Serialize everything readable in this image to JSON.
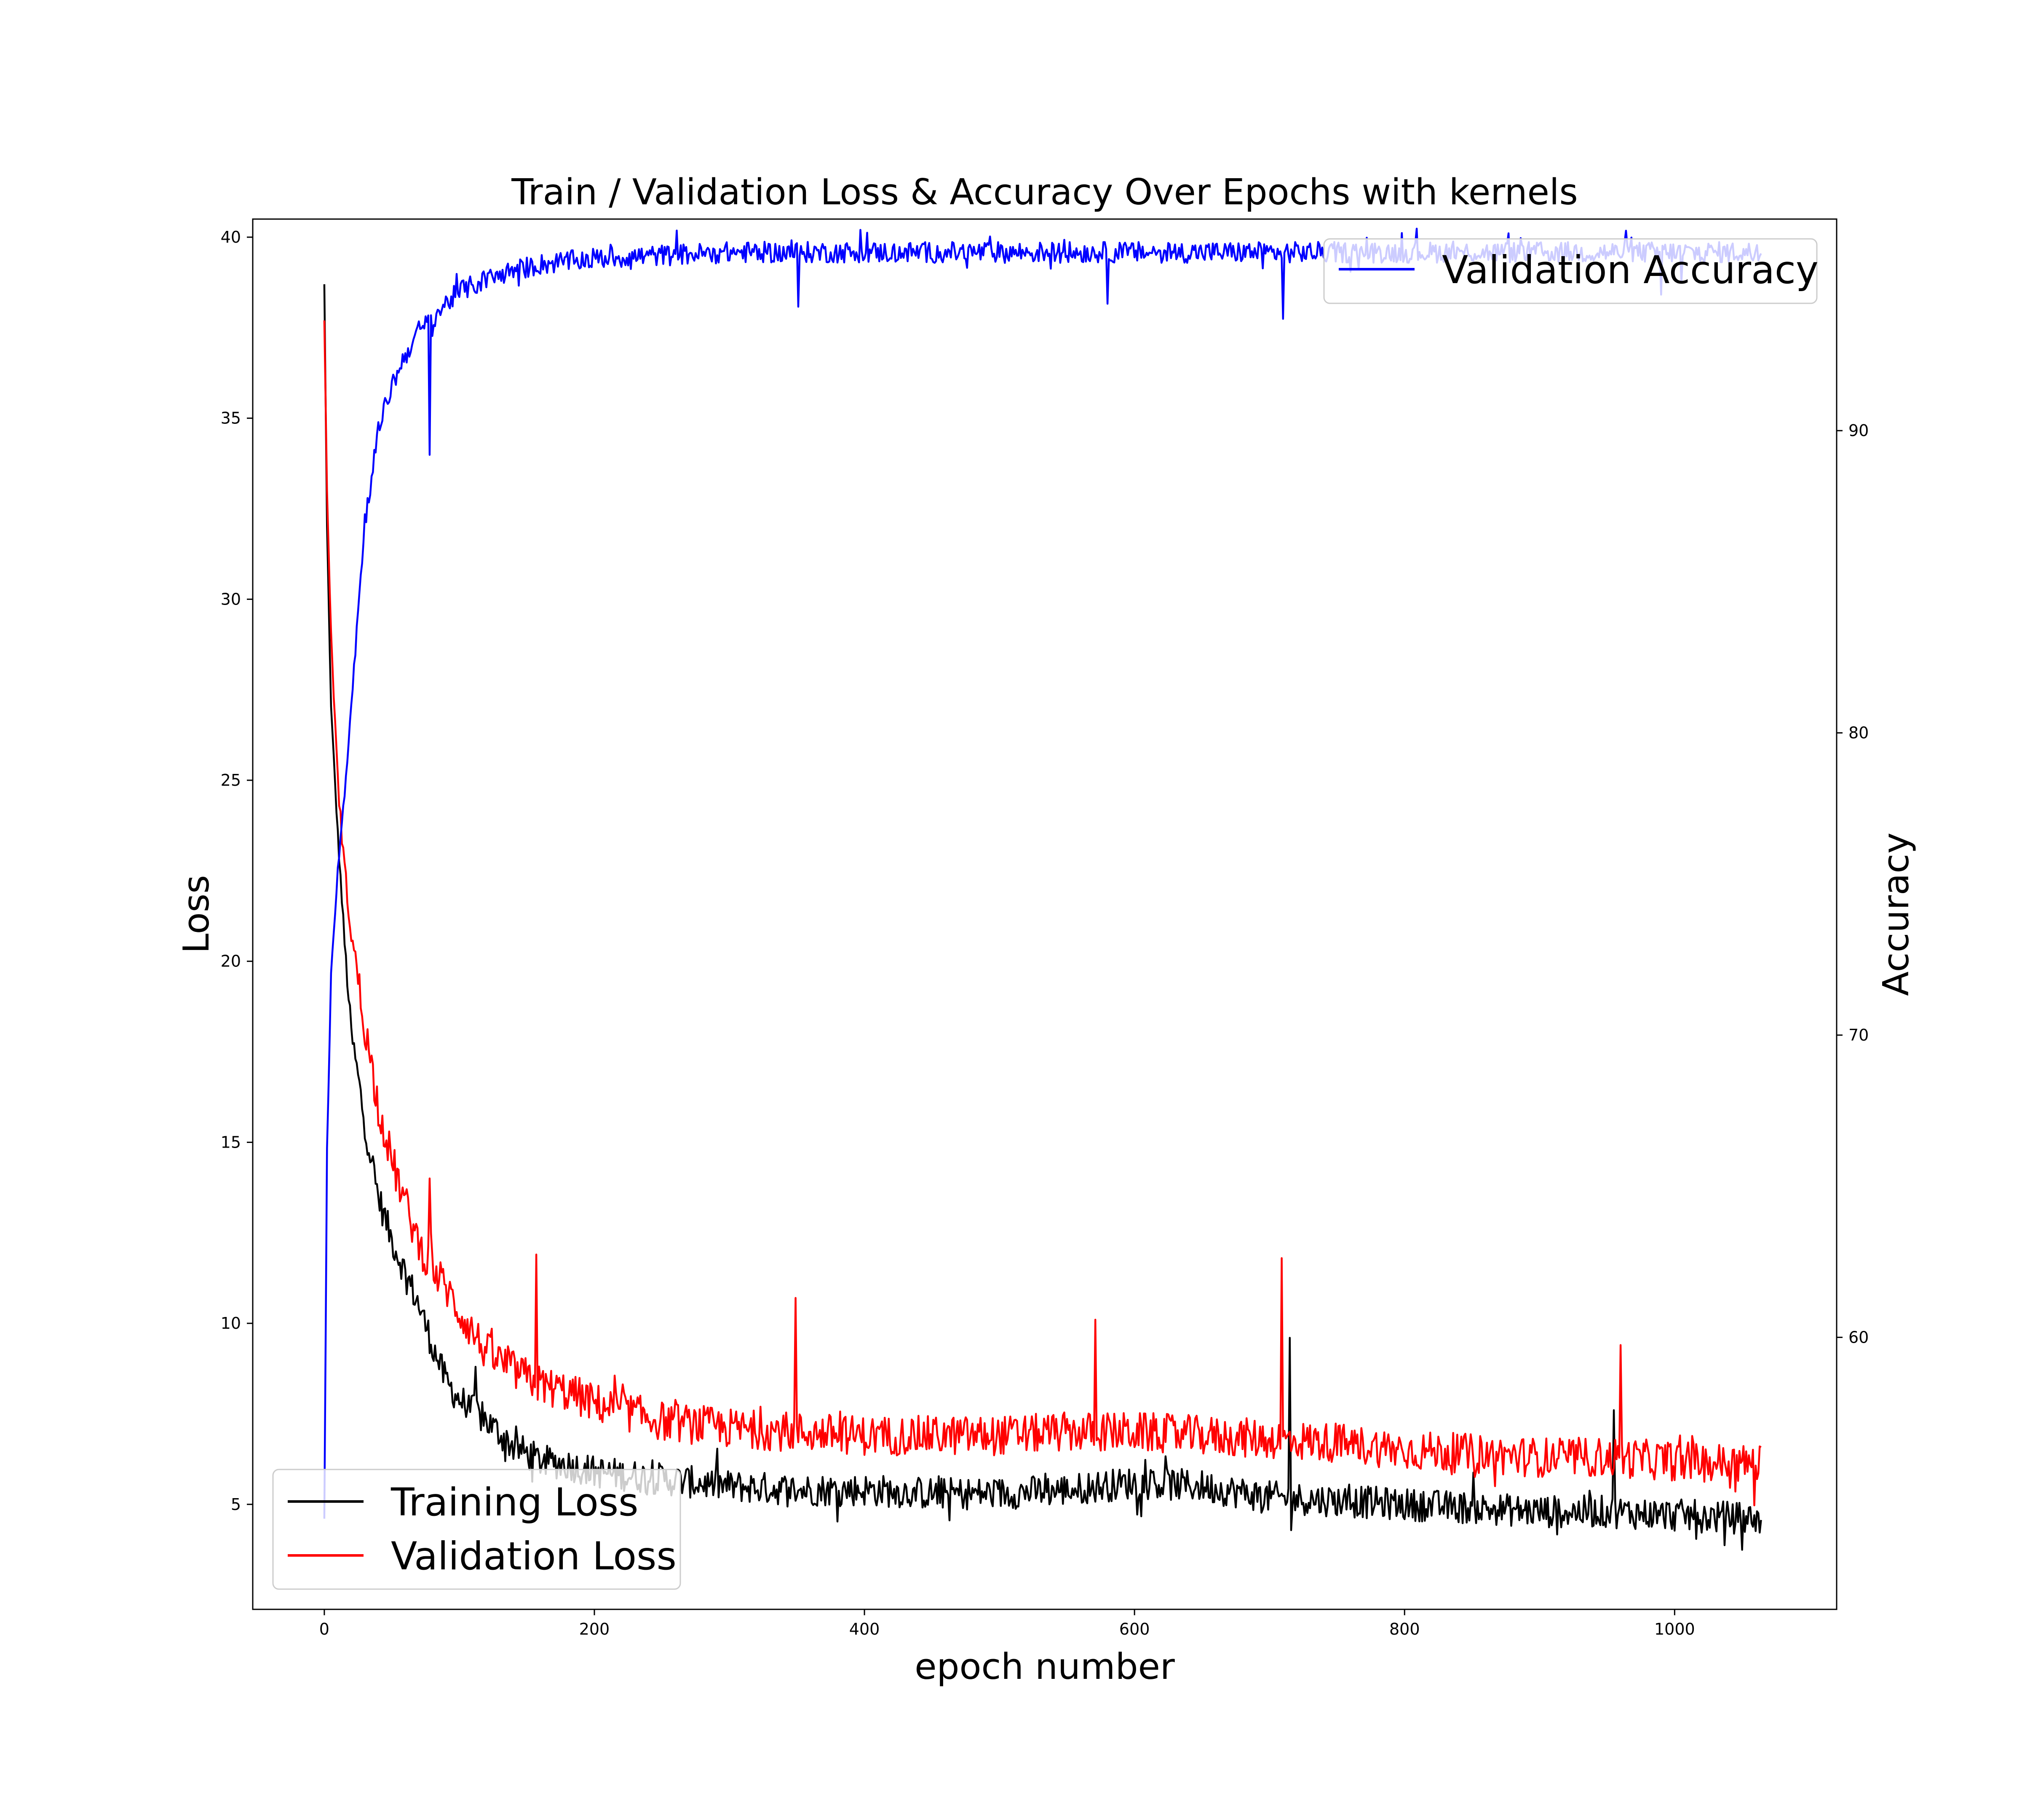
{
  "chart_data": {
    "type": "line",
    "title": "Train / Validation Loss & Accuracy Over Epochs with kernels",
    "xlabel": "epoch number",
    "ylabel_left": "Loss",
    "ylabel_right": "Accuracy",
    "xlim": [
      -53,
      1120
    ],
    "ylim_left": [
      2.1,
      40.5
    ],
    "ylim_right": [
      51.0,
      97.0
    ],
    "xticks": [
      0,
      200,
      400,
      600,
      800,
      1000
    ],
    "yticks_left": [
      5,
      10,
      15,
      20,
      25,
      30,
      35,
      40
    ],
    "yticks_right": [
      60,
      70,
      80,
      90
    ],
    "grid": false,
    "legend_left": {
      "placement": "lower-left",
      "entries": [
        "Training Loss",
        "Validation Loss"
      ]
    },
    "legend_right": {
      "placement": "upper-right",
      "entries": [
        "Validation Accuracy"
      ]
    },
    "num_epochs": 1065,
    "series": [
      {
        "name": "Training Loss",
        "axis": "left",
        "color": "#000000",
        "x": [
          0,
          2,
          5,
          10,
          15,
          20,
          25,
          30,
          40,
          50,
          60,
          70,
          80,
          90,
          100,
          120,
          140,
          160,
          180,
          200,
          250,
          300,
          350,
          400,
          450,
          500,
          550,
          600,
          650,
          700,
          750,
          800,
          850,
          900,
          950,
          1000,
          1065
        ],
        "values": [
          38.7,
          32.0,
          27.0,
          23.5,
          20.5,
          18.0,
          16.8,
          15.5,
          13.5,
          12.3,
          11.4,
          10.5,
          9.4,
          8.4,
          7.9,
          7.3,
          6.6,
          6.2,
          6.1,
          5.9,
          5.7,
          5.5,
          5.4,
          5.4,
          5.3,
          5.3,
          5.4,
          5.6,
          5.5,
          5.2,
          5.1,
          5.0,
          4.9,
          4.8,
          4.8,
          4.7,
          4.6
        ],
        "noise": 0.45,
        "spikes": [
          {
            "x": 715,
            "y": 9.6
          },
          {
            "x": 112,
            "y": 8.8
          },
          {
            "x": 955,
            "y": 7.6
          }
        ]
      },
      {
        "name": "Validation Loss",
        "axis": "left",
        "color": "#ff0000",
        "x": [
          0,
          2,
          5,
          10,
          15,
          20,
          25,
          30,
          40,
          50,
          60,
          70,
          80,
          90,
          100,
          120,
          140,
          160,
          180,
          200,
          250,
          300,
          350,
          400,
          450,
          500,
          550,
          600,
          650,
          700,
          750,
          800,
          850,
          900,
          950,
          1000,
          1065
        ],
        "values": [
          37.7,
          33.0,
          29.0,
          25.0,
          22.5,
          20.8,
          19.5,
          18.2,
          16.0,
          14.5,
          13.3,
          12.2,
          11.5,
          11.0,
          10.3,
          9.2,
          8.7,
          8.3,
          8.1,
          7.8,
          7.3,
          7.1,
          7.0,
          6.9,
          6.9,
          6.9,
          7.0,
          7.0,
          6.9,
          6.8,
          6.7,
          6.5,
          6.4,
          6.3,
          6.3,
          6.2,
          6.1
        ],
        "noise": 0.55,
        "spikes": [
          {
            "x": 157,
            "y": 11.9
          },
          {
            "x": 349,
            "y": 10.7
          },
          {
            "x": 78,
            "y": 14.0
          },
          {
            "x": 571,
            "y": 10.1
          },
          {
            "x": 709,
            "y": 11.8
          },
          {
            "x": 960,
            "y": 9.4
          }
        ]
      },
      {
        "name": "Validation Accuracy",
        "axis": "right",
        "color": "#0000ff",
        "x": [
          0,
          2,
          5,
          10,
          15,
          20,
          25,
          30,
          40,
          50,
          60,
          70,
          80,
          90,
          100,
          120,
          140,
          160,
          180,
          200,
          250,
          300,
          350,
          400,
          450,
          500,
          550,
          600,
          650,
          700,
          750,
          800,
          850,
          900,
          950,
          1000,
          1065
        ],
        "values": [
          54.0,
          66.0,
          72.0,
          75.5,
          78.0,
          81.0,
          84.0,
          87.0,
          90.0,
          91.5,
          92.5,
          93.3,
          93.7,
          94.2,
          94.6,
          95.0,
          95.3,
          95.5,
          95.6,
          95.7,
          95.8,
          95.9,
          95.9,
          95.9,
          95.9,
          95.9,
          95.9,
          95.9,
          95.9,
          95.9,
          95.9,
          95.9,
          95.9,
          95.9,
          95.9,
          95.9,
          95.9
        ],
        "noise": 0.35,
        "spikes": [
          {
            "x": 78,
            "y": 89.2
          },
          {
            "x": 351,
            "y": 94.1
          },
          {
            "x": 580,
            "y": 94.2
          },
          {
            "x": 710,
            "y": 93.7
          },
          {
            "x": 990,
            "y": 94.5
          },
          {
            "x": 1005,
            "y": 94.9
          }
        ]
      }
    ]
  }
}
